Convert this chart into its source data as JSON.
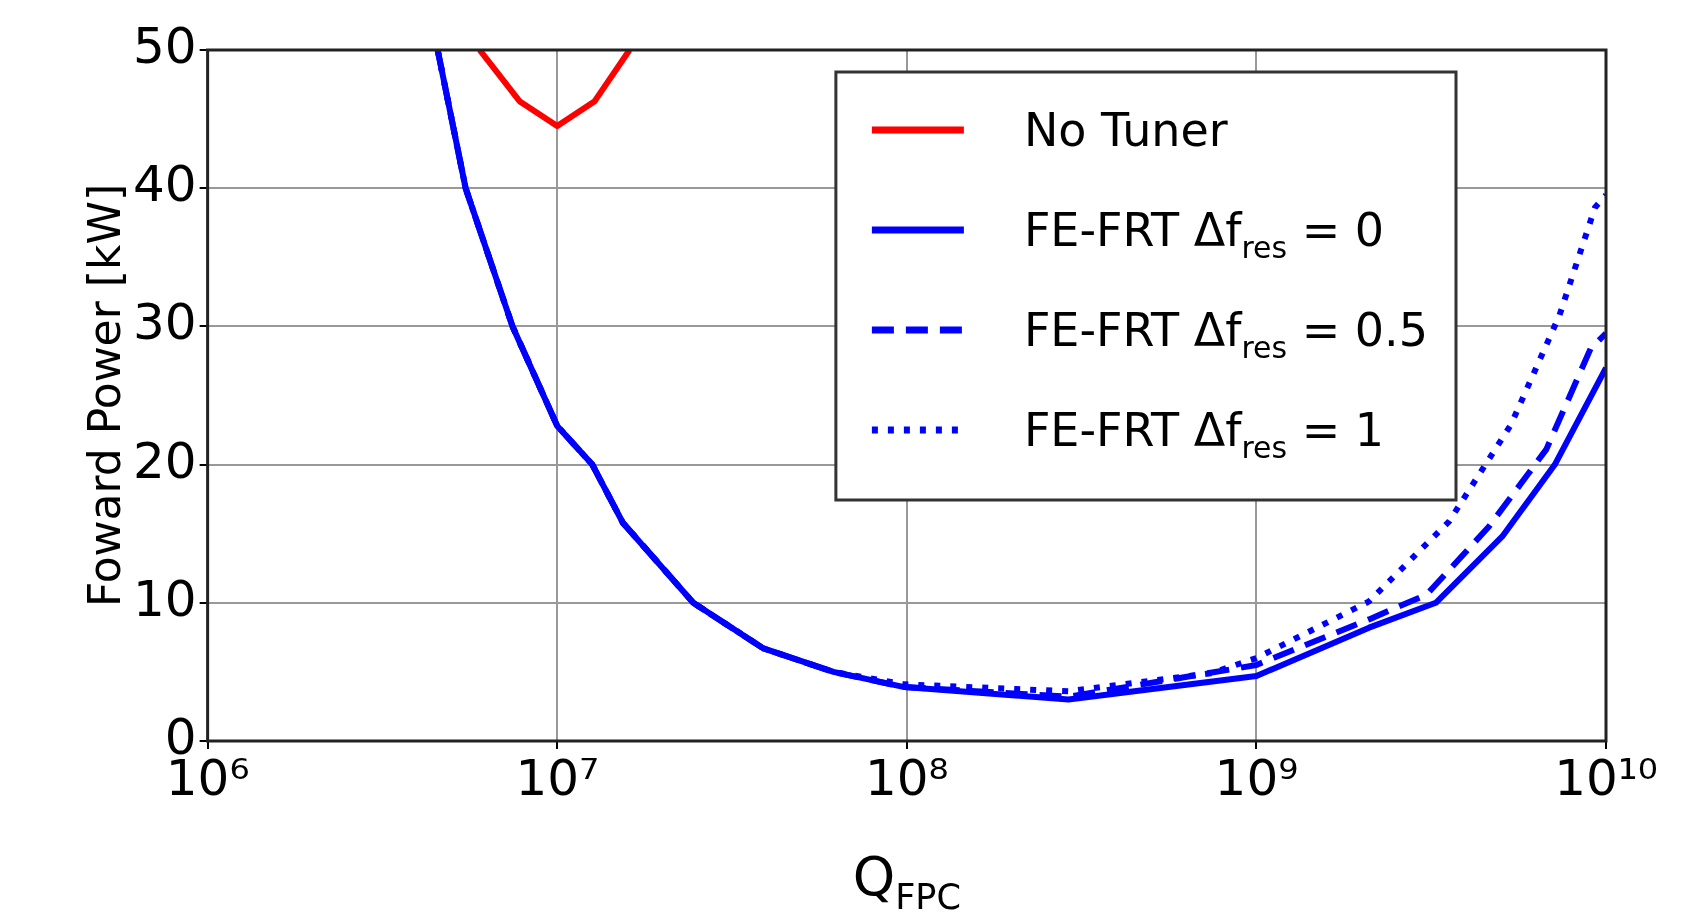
{
  "chart_data": {
    "type": "line",
    "xlabel": "Q$_{FPC}$",
    "ylabel": "Foward Power [kW]",
    "log": "x",
    "grid": true,
    "legend": "top right",
    "marker": "none",
    "xlim": [
      1000000,
      10000000000
    ],
    "ylim": [
      0,
      50
    ],
    "xticks": [
      {
        "value": 1000000,
        "label": "10⁶"
      },
      {
        "value": 10000000,
        "label": "10⁷"
      },
      {
        "value": 100000000,
        "label": "10⁸"
      },
      {
        "value": 1000000000,
        "label": "10⁹"
      },
      {
        "value": 10000000000,
        "label": "10¹⁰"
      }
    ],
    "yticks": [
      0,
      10,
      20,
      30,
      40,
      50
    ],
    "series": [
      {
        "name": "No Tuner",
        "color": "#ff0000",
        "line_style": "solid",
        "x": [
          6000000,
          7800000,
          10000000,
          12800000,
          16100000
        ],
        "values": [
          50,
          46.3,
          44.5,
          46.3,
          50
        ]
      },
      {
        "name": "FE-FRT Δf$_{res}$ = 0",
        "color": "#0000ff",
        "line_style": "solid",
        "x": [
          4550000,
          5470000,
          7450000,
          10000000,
          12600000,
          15400000,
          24500000,
          38900000,
          61700000,
          98400000,
          290000000,
          1000000000,
          2100000000,
          3260000000,
          5050000000,
          7140000000,
          10000000000
        ],
        "values": [
          50,
          40,
          30,
          22.8,
          20,
          15.8,
          10,
          6.7,
          5,
          3.9,
          3,
          4.7,
          8.2,
          10,
          14.8,
          20,
          27
        ]
      },
      {
        "name": "FE-FRT Δf$_{res}$ = 0.5",
        "color": "#0000ff",
        "line_style": "dashed",
        "x": [
          4550000,
          5470000,
          7450000,
          10000000,
          12600000,
          15400000,
          24500000,
          38900000,
          61700000,
          98400000,
          290000000,
          1000000000,
          2100000000,
          3070000000,
          4620000000,
          6750000000,
          9040000000,
          10000000000
        ],
        "values": [
          50,
          40,
          30,
          22.8,
          20,
          15.8,
          10,
          6.7,
          5,
          3.9,
          3.2,
          5.5,
          8.8,
          10.6,
          15.5,
          21.1,
          28.4,
          29.5
        ]
      },
      {
        "name": "FE-FRT Δf$_{res}$ = 1",
        "color": "#0000ff",
        "line_style": "dotted",
        "x": [
          4550000,
          5470000,
          7450000,
          10000000,
          12600000,
          15400000,
          24500000,
          38900000,
          61700000,
          98400000,
          290000000,
          740000000,
          1000000000,
          2100000000,
          3560000000,
          5350000000,
          7360000000,
          9300000000,
          10000000000
        ],
        "values": [
          50,
          40,
          30,
          22.8,
          20,
          15.8,
          10,
          6.7,
          5,
          4.1,
          3.6,
          4.9,
          6,
          10.1,
          15.9,
          22.9,
          30.8,
          38.6,
          39.5
        ]
      }
    ]
  }
}
